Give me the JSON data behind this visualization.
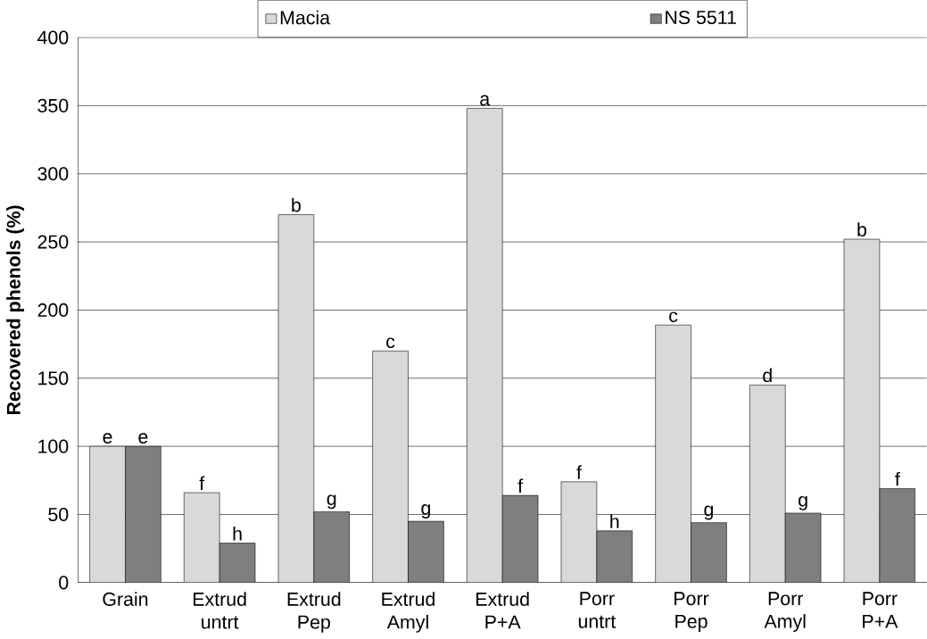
{
  "chart_data": {
    "type": "bar",
    "ylabel": "Recovered phenols (%)",
    "categories": [
      "Grain",
      "Extrud untrt",
      "Extrud Pep",
      "Extrud Amyl",
      "Extrud P+A",
      "Porr untrt",
      "Porr Pep",
      "Porr Amyl",
      "Porr P+A"
    ],
    "series": [
      {
        "name": "Macia",
        "color": "#d9d9d9",
        "values": [
          100,
          66,
          270,
          170,
          348,
          74,
          189,
          145,
          252
        ],
        "value_labels": [
          "e",
          "f",
          "b",
          "c",
          "a",
          "f",
          "c",
          "d",
          "b"
        ]
      },
      {
        "name": "NS 5511",
        "color": "#7f7f7f",
        "values": [
          100,
          29,
          52,
          45,
          64,
          38,
          44,
          51,
          69
        ],
        "value_labels": [
          "e",
          "h",
          "g",
          "g",
          "f",
          "h",
          "g",
          "g",
          "f"
        ]
      }
    ],
    "ylim": [
      0,
      400
    ],
    "yticks": [
      0,
      50,
      100,
      150,
      200,
      250,
      300,
      350,
      400
    ],
    "grid": "y",
    "legend": "top"
  }
}
